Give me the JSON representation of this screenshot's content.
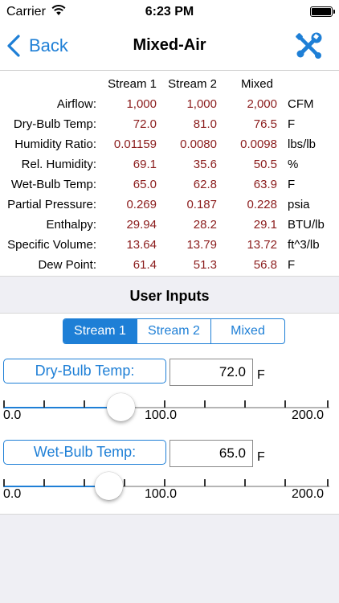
{
  "status_bar": {
    "carrier": "Carrier",
    "time": "6:23 PM"
  },
  "nav": {
    "back_label": "Back",
    "title": "Mixed-Air"
  },
  "table": {
    "columns": [
      "Stream 1",
      "Stream 2",
      "Mixed"
    ],
    "rows": [
      {
        "label": "Airflow:",
        "s1": "1,000",
        "s2": "1,000",
        "mixed": "2,000",
        "unit": "CFM"
      },
      {
        "label": "Dry-Bulb Temp:",
        "s1": "72.0",
        "s2": "81.0",
        "mixed": "76.5",
        "unit": "F"
      },
      {
        "label": "Humidity Ratio:",
        "s1": "0.01159",
        "s2": "0.0080",
        "mixed": "0.0098",
        "unit": "lbs/lb"
      },
      {
        "label": "Rel. Humidity:",
        "s1": "69.1",
        "s2": "35.6",
        "mixed": "50.5",
        "unit": "%"
      },
      {
        "label": "Wet-Bulb Temp:",
        "s1": "65.0",
        "s2": "62.8",
        "mixed": "63.9",
        "unit": "F"
      },
      {
        "label": "Partial Pressure:",
        "s1": "0.269",
        "s2": "0.187",
        "mixed": "0.228",
        "unit": "psia"
      },
      {
        "label": "Enthalpy:",
        "s1": "29.94",
        "s2": "28.2",
        "mixed": "29.1",
        "unit": "BTU/lb"
      },
      {
        "label": "Specific Volume:",
        "s1": "13.64",
        "s2": "13.79",
        "mixed": "13.72",
        "unit": "ft^3/lb"
      },
      {
        "label": "Dew Point:",
        "s1": "61.4",
        "s2": "51.3",
        "mixed": "56.8",
        "unit": "F"
      }
    ]
  },
  "user_inputs": {
    "title": "User Inputs",
    "segments": [
      "Stream 1",
      "Stream 2",
      "Mixed"
    ],
    "selected_segment": "Stream 1",
    "dry_bulb": {
      "button_label": "Dry-Bulb Temp:",
      "value": "72.0",
      "unit": "F",
      "min_label": "0.0",
      "mid_label": "100.0",
      "max_label": "200.0",
      "slider_value": 72.0
    },
    "wet_bulb": {
      "button_label": "Wet-Bulb Temp:",
      "value": "65.0",
      "unit": "F",
      "min_label": "0.0",
      "mid_label": "100.0",
      "max_label": "200.0",
      "slider_value": 65.0
    }
  },
  "colors": {
    "accent": "#1e7fd6",
    "value_text": "#8b1c1c",
    "section_bg": "#efeff4"
  },
  "icons": {
    "back": "chevron-left-icon",
    "tools": "wrench-screwdriver-icon",
    "wifi": "wifi-icon",
    "battery": "battery-icon"
  }
}
